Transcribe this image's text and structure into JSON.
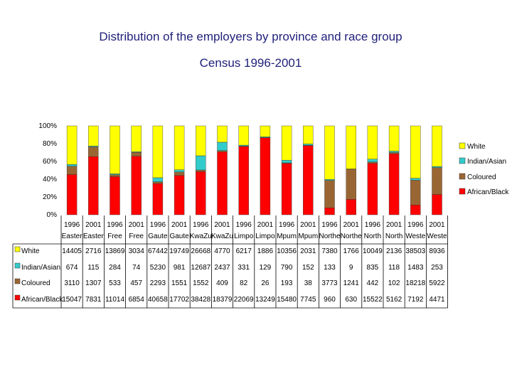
{
  "chart_data": {
    "type": "bar",
    "stacked": "percent",
    "title": "Distribution of the employers by province and race group",
    "subtitle": "Census 1996-2001",
    "x_years": [
      "1996",
      "2001",
      "1996",
      "2001",
      "1996",
      "2001",
      "1996",
      "2001",
      "1996",
      "2001",
      "1996",
      "2001",
      "1996",
      "2001",
      "1996",
      "2001",
      "1996",
      "2001"
    ],
    "x_provinces": [
      "Easter",
      "Easter",
      "Free",
      "Free",
      "Gaute",
      "Gaute",
      "KwaZu",
      "KwaZu",
      "Limpo",
      "Limpo",
      "Mpum",
      "Mpum",
      "Northe",
      "Northe",
      "North",
      "North",
      "Weste",
      "Weste"
    ],
    "y_ticks": [
      "0%",
      "20%",
      "40%",
      "60%",
      "80%",
      "100%"
    ],
    "ylim": [
      0,
      100
    ],
    "legend_position": "right",
    "series": [
      {
        "name": "White",
        "color": "#ffff00",
        "values": [
          14405,
          2716,
          13869,
          3034,
          67442,
          19749,
          26668,
          4770,
          6217,
          1886,
          10356,
          2031,
          7380,
          1766,
          10049,
          2136,
          38503,
          8936
        ],
        "labels": [
          "14405",
          "2716",
          "13869",
          "3034",
          "67442",
          "19749",
          "26668",
          "4770",
          "6217",
          "1886",
          "10356",
          "2031",
          "7380",
          "1766",
          "10049",
          "2136",
          "38503",
          "8936"
        ]
      },
      {
        "name": "Indian/Asian",
        "color": "#33cccc",
        "values": [
          674,
          115,
          284,
          74,
          5230,
          981,
          12687,
          2437,
          331,
          129,
          790,
          152,
          133,
          9,
          835,
          118,
          1483,
          253
        ],
        "labels": [
          "674",
          "115",
          "284",
          "74",
          "5230",
          "981",
          "12687",
          "2437",
          "331",
          "129",
          "790",
          "152",
          "133",
          "9",
          "835",
          "118",
          "1483",
          "253"
        ]
      },
      {
        "name": "Coloured",
        "color": "#996633",
        "values": [
          3110,
          1307,
          533,
          457,
          2293,
          1551,
          1552,
          409,
          82,
          26,
          193,
          38,
          3773,
          1241,
          442,
          102,
          18218,
          5922
        ],
        "labels": [
          "3110",
          "1307",
          "533",
          "457",
          "2293",
          "1551",
          "1552",
          "409",
          "82",
          "26",
          "193",
          "38",
          "3773",
          "1241",
          "442",
          "102",
          "18218",
          "5922"
        ]
      },
      {
        "name": "African/Black",
        "color": "#ff0000",
        "values": [
          15047,
          7831,
          11014,
          6854,
          40658,
          17702,
          38428,
          18379,
          22069,
          13249,
          15480,
          7745,
          960,
          630,
          15522,
          5162,
          7192,
          4471
        ],
        "labels": [
          "15047",
          "7831",
          "11014",
          "6854",
          "40658",
          "17702",
          "38428",
          "18379",
          "22069",
          "13249",
          "15480",
          "7745",
          "960",
          "630",
          "15522",
          "5162",
          "7192",
          "4471"
        ]
      }
    ]
  }
}
